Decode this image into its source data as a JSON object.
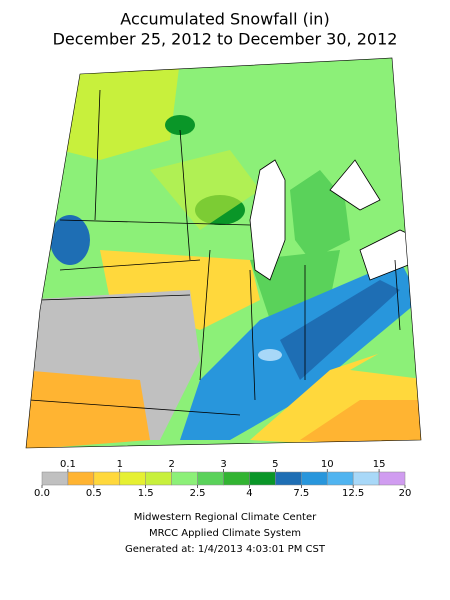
{
  "title": [
    "Accumulated Snowfall (in)",
    "December 25, 2012 to December 30, 2012"
  ],
  "legend": {
    "breaks": [
      {
        "value": 0,
        "label": "0.0"
      },
      0.1,
      0.5,
      1,
      1.5,
      2,
      2.5,
      3,
      4,
      5,
      7.5,
      10,
      12.5,
      15,
      20
    ],
    "colors": [
      "#c0c0c0",
      "#ffb432",
      "#ffd83c",
      "#e6f032",
      "#c8f03c",
      "#8cf078",
      "#5ad25a",
      "#32b432",
      "#0a9628",
      "#1e6eb4",
      "#2896dc",
      "#50b4f0",
      "#a8d8f8",
      "#d09cf0"
    ]
  },
  "footer": [
    "Midwestern Regional Climate Center",
    "MRCC Applied Climate System",
    "Generated at: 1/4/2013 4:03:01 PM CST"
  ]
}
